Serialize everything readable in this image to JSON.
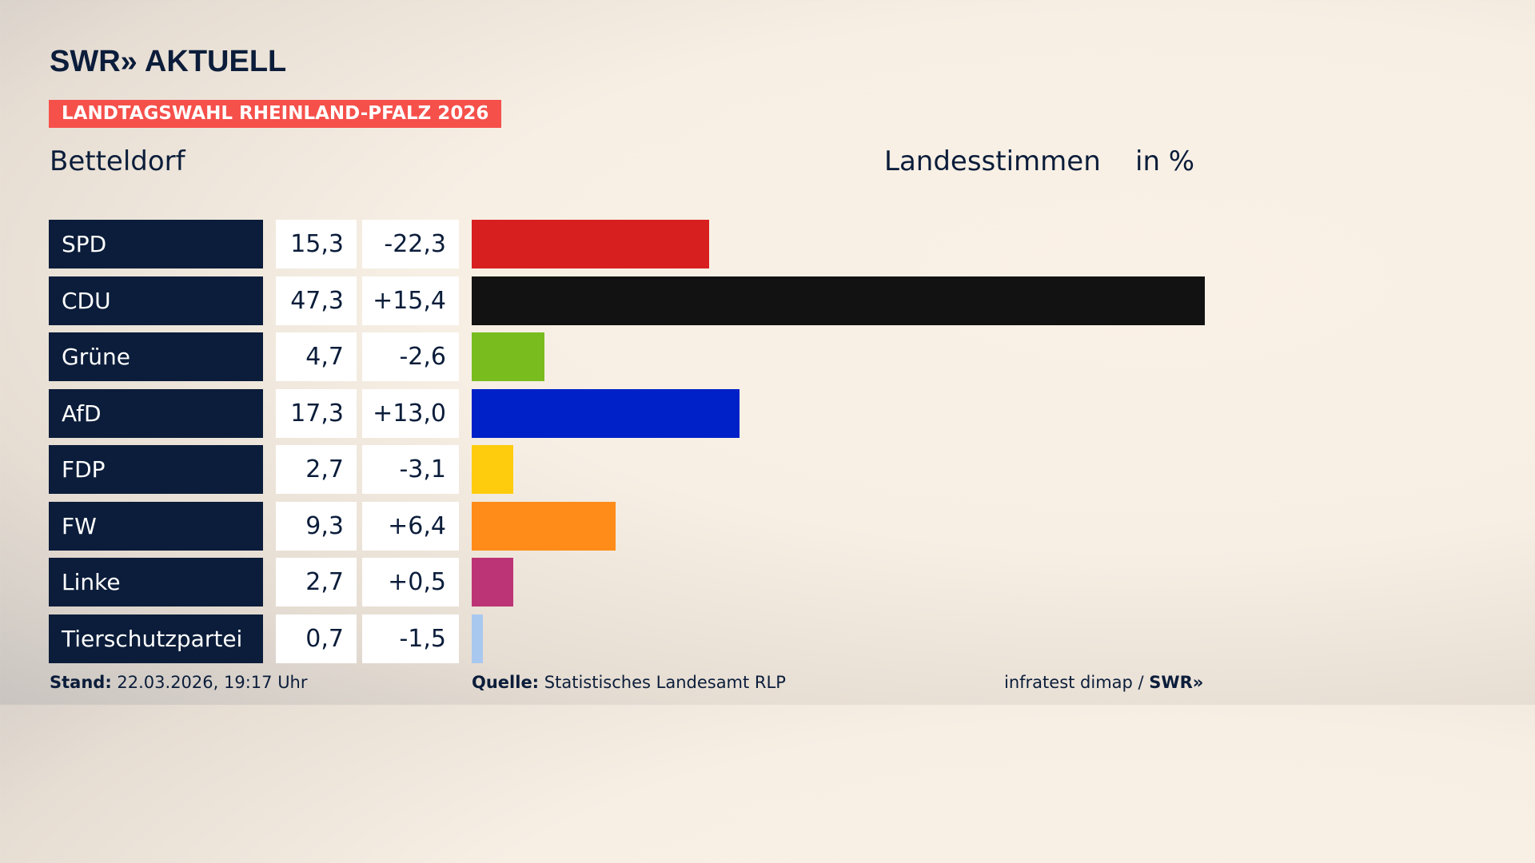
{
  "header": {
    "logo": "SWR» AKTUELL",
    "badge": "LANDTAGSWAHL RHEINLAND-PFALZ 2026",
    "place": "Betteldorf",
    "measure": "Landesstimmen",
    "unit": "in %"
  },
  "chart_data": {
    "type": "bar",
    "orientation": "horizontal",
    "categories": [
      "SPD",
      "CDU",
      "Grüne",
      "AfD",
      "FDP",
      "FW",
      "Linke",
      "Tierschutzpartei"
    ],
    "values": [
      "15,3",
      "47,3",
      "4,7",
      "17,3",
      "2,7",
      "9,3",
      "2,7",
      "0,7"
    ],
    "values_numeric": [
      15.3,
      47.3,
      4.7,
      17.3,
      2.7,
      9.3,
      2.7,
      0.7
    ],
    "diffs": [
      "-22,3",
      "+15,4",
      "-2,6",
      "+13,0",
      "-3,1",
      "+6,4",
      "+0,5",
      "-1,5"
    ],
    "colors": [
      "#d81f20",
      "#121212",
      "#78bc1e",
      "#0021c8",
      "#ffcc0d",
      "#ff8c19",
      "#bc3475",
      "#a9c8ef"
    ],
    "xlim": [
      0,
      47.3
    ]
  },
  "footer": {
    "stand_label": "Stand:",
    "stand": "22.03.2026, 19:17 Uhr",
    "source_label": "Quelle:",
    "source": "Statistisches Landesamt RLP",
    "credit": "infratest dimap / ",
    "credit_logo": "SWR»"
  }
}
